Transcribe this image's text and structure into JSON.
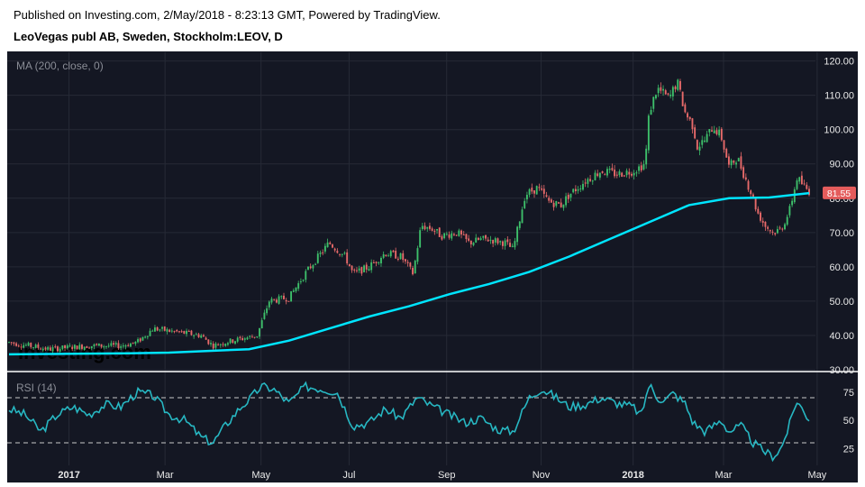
{
  "header": {
    "published": "Published on Investing.com, 2/May/2018 - 8:23:13 GMT, Powered by TradingView.",
    "title": "LeoVegas publ AB, Sweden, Stockholm:LEOV, D"
  },
  "watermark": "Investing.com",
  "colors": {
    "background": "#141723",
    "grid": "#262a36",
    "up": "#3dbf6a",
    "down": "#e86a6a",
    "ma": "#00e5ff",
    "rsi": "#27b7c2",
    "price_badge": "#e45c5c"
  },
  "chart_data": [
    {
      "type": "candlestick",
      "title": "",
      "indicator_label": "MA (200, close, 0)",
      "y_ticks": [
        "120.00",
        "110.00",
        "100.00",
        "90.00",
        "80.00",
        "70.00",
        "60.00",
        "50.00",
        "40.00",
        "30.00"
      ],
      "ylim": [
        30,
        122
      ],
      "last_price": "81.55",
      "x_ticks": [
        {
          "label": "2017",
          "bold": true,
          "t": 0.075
        },
        {
          "label": "Mar",
          "bold": false,
          "t": 0.195
        },
        {
          "label": "May",
          "bold": false,
          "t": 0.315
        },
        {
          "label": "Jul",
          "bold": false,
          "t": 0.425
        },
        {
          "label": "Sep",
          "bold": false,
          "t": 0.547
        },
        {
          "label": "Nov",
          "bold": false,
          "t": 0.665
        },
        {
          "label": "2018",
          "bold": true,
          "t": 0.78
        },
        {
          "label": "Mar",
          "bold": false,
          "t": 0.893
        },
        {
          "label": "May",
          "bold": false,
          "t": 1.01
        }
      ],
      "price_path": [
        [
          0.0,
          38
        ],
        [
          0.05,
          36
        ],
        [
          0.1,
          37
        ],
        [
          0.14,
          37
        ],
        [
          0.16,
          38
        ],
        [
          0.18,
          42
        ],
        [
          0.21,
          41
        ],
        [
          0.24,
          40
        ],
        [
          0.255,
          37
        ],
        [
          0.27,
          38
        ],
        [
          0.29,
          39
        ],
        [
          0.31,
          40
        ],
        [
          0.325,
          50
        ],
        [
          0.35,
          51
        ],
        [
          0.37,
          58
        ],
        [
          0.4,
          67
        ],
        [
          0.42,
          63
        ],
        [
          0.43,
          58
        ],
        [
          0.45,
          60
        ],
        [
          0.47,
          64
        ],
        [
          0.49,
          63
        ],
        [
          0.505,
          58
        ],
        [
          0.515,
          72
        ],
        [
          0.53,
          71
        ],
        [
          0.54,
          69
        ],
        [
          0.56,
          70
        ],
        [
          0.575,
          67
        ],
        [
          0.59,
          68
        ],
        [
          0.6,
          68
        ],
        [
          0.62,
          67
        ],
        [
          0.63,
          65
        ],
        [
          0.645,
          81
        ],
        [
          0.66,
          83
        ],
        [
          0.675,
          79
        ],
        [
          0.69,
          78
        ],
        [
          0.7,
          81
        ],
        [
          0.72,
          85
        ],
        [
          0.74,
          88
        ],
        [
          0.76,
          87
        ],
        [
          0.78,
          88
        ],
        [
          0.795,
          90
        ],
        [
          0.8,
          105
        ],
        [
          0.81,
          112
        ],
        [
          0.825,
          109
        ],
        [
          0.835,
          114
        ],
        [
          0.845,
          105
        ],
        [
          0.855,
          101
        ],
        [
          0.86,
          95
        ],
        [
          0.87,
          97
        ],
        [
          0.88,
          101
        ],
        [
          0.89,
          98
        ],
        [
          0.9,
          89
        ],
        [
          0.91,
          92
        ],
        [
          0.92,
          86
        ],
        [
          0.93,
          80
        ],
        [
          0.935,
          76
        ],
        [
          0.945,
          72
        ],
        [
          0.955,
          70
        ],
        [
          0.965,
          71
        ],
        [
          0.975,
          76
        ],
        [
          0.985,
          86
        ],
        [
          0.995,
          83
        ],
        [
          1.0,
          82
        ]
      ],
      "ma_path": [
        [
          0.0,
          34.5
        ],
        [
          0.15,
          34.8
        ],
        [
          0.2,
          35
        ],
        [
          0.3,
          36
        ],
        [
          0.35,
          38.5
        ],
        [
          0.4,
          42
        ],
        [
          0.45,
          45.5
        ],
        [
          0.5,
          48.5
        ],
        [
          0.55,
          52
        ],
        [
          0.6,
          55
        ],
        [
          0.65,
          58.5
        ],
        [
          0.7,
          63
        ],
        [
          0.75,
          68
        ],
        [
          0.8,
          73
        ],
        [
          0.85,
          78
        ],
        [
          0.9,
          80
        ],
        [
          0.95,
          80.2
        ],
        [
          1.0,
          81.5
        ]
      ]
    },
    {
      "type": "line",
      "title": "",
      "indicator_label": "RSI (14)",
      "y_ticks": [
        "75",
        "50",
        "25"
      ],
      "ylim": [
        10,
        90
      ],
      "levels": [
        70,
        30
      ],
      "rsi_path": [
        [
          0.0,
          60
        ],
        [
          0.02,
          55
        ],
        [
          0.04,
          40
        ],
        [
          0.06,
          55
        ],
        [
          0.08,
          62
        ],
        [
          0.1,
          55
        ],
        [
          0.12,
          64
        ],
        [
          0.14,
          62
        ],
        [
          0.16,
          75
        ],
        [
          0.18,
          72
        ],
        [
          0.2,
          55
        ],
        [
          0.22,
          50
        ],
        [
          0.24,
          35
        ],
        [
          0.255,
          30
        ],
        [
          0.27,
          45
        ],
        [
          0.29,
          62
        ],
        [
          0.3,
          68
        ],
        [
          0.315,
          80
        ],
        [
          0.33,
          78
        ],
        [
          0.35,
          65
        ],
        [
          0.37,
          80
        ],
        [
          0.39,
          78
        ],
        [
          0.41,
          75
        ],
        [
          0.43,
          45
        ],
        [
          0.45,
          48
        ],
        [
          0.47,
          60
        ],
        [
          0.49,
          52
        ],
        [
          0.51,
          70
        ],
        [
          0.53,
          62
        ],
        [
          0.55,
          55
        ],
        [
          0.57,
          48
        ],
        [
          0.59,
          52
        ],
        [
          0.61,
          42
        ],
        [
          0.63,
          40
        ],
        [
          0.65,
          70
        ],
        [
          0.665,
          78
        ],
        [
          0.68,
          72
        ],
        [
          0.7,
          62
        ],
        [
          0.72,
          64
        ],
        [
          0.74,
          70
        ],
        [
          0.76,
          65
        ],
        [
          0.78,
          62
        ],
        [
          0.79,
          54
        ],
        [
          0.8,
          82
        ],
        [
          0.81,
          70
        ],
        [
          0.82,
          68
        ],
        [
          0.83,
          74
        ],
        [
          0.845,
          65
        ],
        [
          0.855,
          48
        ],
        [
          0.87,
          40
        ],
        [
          0.89,
          50
        ],
        [
          0.9,
          40
        ],
        [
          0.915,
          45
        ],
        [
          0.93,
          30
        ],
        [
          0.945,
          22
        ],
        [
          0.955,
          18
        ],
        [
          0.965,
          25
        ],
        [
          0.975,
          45
        ],
        [
          0.985,
          68
        ],
        [
          0.995,
          55
        ],
        [
          1.0,
          52
        ]
      ]
    }
  ]
}
